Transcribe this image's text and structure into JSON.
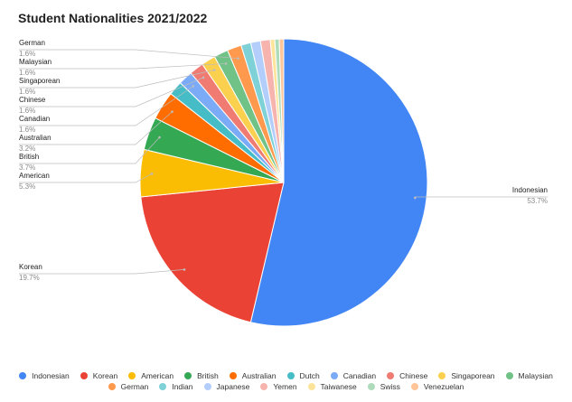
{
  "chart_data": {
    "type": "pie",
    "title": "Student Nationalities 2021/2022",
    "slices": [
      {
        "label": "Indonesian",
        "value": 53.7,
        "pct_text": "53.7%",
        "color": "#4285f4"
      },
      {
        "label": "Korean",
        "value": 19.7,
        "pct_text": "19.7%",
        "color": "#ea4335"
      },
      {
        "label": "American",
        "value": 5.3,
        "pct_text": "5.3%",
        "color": "#fbbc04"
      },
      {
        "label": "British",
        "value": 3.7,
        "pct_text": "3.7%",
        "color": "#34a853"
      },
      {
        "label": "Australian",
        "value": 3.2,
        "pct_text": "3.2%",
        "color": "#ff6d01"
      },
      {
        "label": "Dutch",
        "value": 1.6,
        "color": "#46bdc6"
      },
      {
        "label": "Canadian",
        "value": 1.6,
        "pct_text": "1.6%",
        "color": "#7baaf7"
      },
      {
        "label": "Chinese",
        "value": 1.6,
        "pct_text": "1.6%",
        "color": "#f07b72"
      },
      {
        "label": "Singaporean",
        "value": 1.6,
        "pct_text": "1.6%",
        "color": "#fcd04f"
      },
      {
        "label": "Malaysian",
        "value": 1.6,
        "pct_text": "1.6%",
        "color": "#71c287"
      },
      {
        "label": "German",
        "value": 1.6,
        "pct_text": "1.6%",
        "color": "#ff994d"
      },
      {
        "label": "Indian",
        "value": 1.1,
        "color": "#7ed1d7"
      },
      {
        "label": "Japanese",
        "value": 1.1,
        "color": "#b3cefb"
      },
      {
        "label": "Yemen",
        "value": 1.1,
        "color": "#f7b4ae"
      },
      {
        "label": "Taiwanese",
        "value": 0.5,
        "color": "#fde49b"
      },
      {
        "label": "Swiss",
        "value": 0.5,
        "color": "#aedcba"
      },
      {
        "label": "Venezuelan",
        "value": 0.5,
        "color": "#ffc599"
      }
    ],
    "legend_position": "bottom"
  }
}
